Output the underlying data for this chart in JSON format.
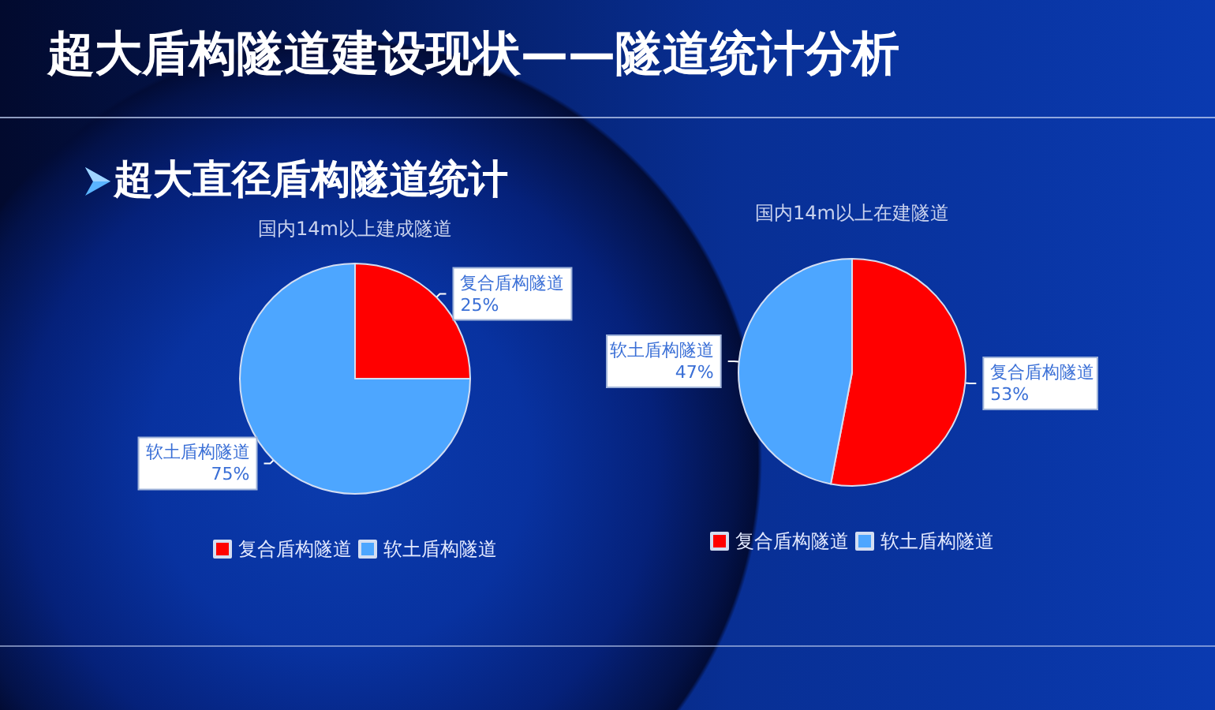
{
  "chart_data": [
    {
      "type": "pie",
      "title": "国内14m以上建成隧道",
      "categories": [
        "复合盾构隧道",
        "软土盾构隧道"
      ],
      "values": [
        25,
        75
      ],
      "value_labels": [
        "25%",
        "75%"
      ],
      "colors": [
        "#ff0000",
        "#4da6ff"
      ],
      "legend": "bottom",
      "annotations": [
        "超大盾构隧道建设现状——隧道统计分析",
        "超大直径盾构隧道统计"
      ]
    },
    {
      "type": "pie",
      "title": "国内14m以上在建隧道",
      "categories": [
        "复合盾构隧道",
        "软土盾构隧道"
      ],
      "values": [
        53,
        47
      ],
      "value_labels": [
        "53%",
        "47%"
      ],
      "colors": [
        "#ff0000",
        "#4da6ff"
      ],
      "legend": "bottom"
    }
  ]
}
